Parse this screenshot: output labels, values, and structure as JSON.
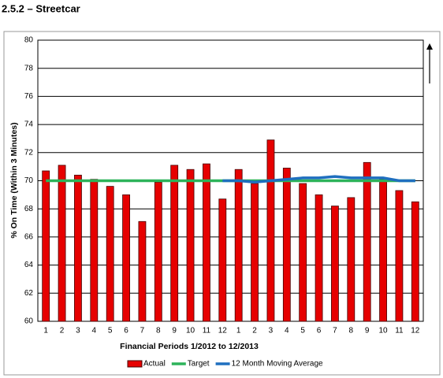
{
  "chart_data": {
    "type": "bar",
    "title": "2.5.2 – Streetcar",
    "x_label": "Financial Periods 1/2012 to 12/2013",
    "y_label": "% On Time (Within 3 Minutes)",
    "categories": [
      "1",
      "2",
      "3",
      "4",
      "5",
      "6",
      "7",
      "8",
      "9",
      "10",
      "11",
      "12",
      "1",
      "2",
      "3",
      "4",
      "5",
      "6",
      "7",
      "8",
      "9",
      "10",
      "11",
      "12"
    ],
    "series": [
      {
        "name": "Actual",
        "type": "bar",
        "color": "#e60000",
        "values": [
          70.7,
          71.1,
          70.4,
          70.1,
          69.6,
          69.0,
          67.1,
          69.9,
          71.1,
          70.8,
          71.2,
          68.7,
          70.8,
          69.8,
          72.9,
          70.9,
          69.8,
          69.0,
          68.2,
          68.8,
          71.3,
          70.1,
          69.3,
          68.5
        ]
      },
      {
        "name": "Target",
        "type": "line",
        "color": "#2db35a",
        "values": [
          70,
          70,
          70,
          70,
          70,
          70,
          70,
          70,
          70,
          70,
          70,
          70,
          70,
          70,
          70,
          70,
          70,
          70,
          70,
          70,
          70,
          70,
          70,
          70
        ]
      },
      {
        "name": "12 Month Moving Average",
        "type": "line",
        "color": "#1f6fbf",
        "values": [
          null,
          null,
          null,
          null,
          null,
          null,
          null,
          null,
          null,
          null,
          null,
          70.0,
          70.0,
          69.9,
          70.0,
          70.1,
          70.2,
          70.2,
          70.3,
          70.2,
          70.2,
          70.2,
          70.0,
          70.0
        ]
      }
    ],
    "ylim": [
      60,
      80
    ],
    "yticks": [
      60,
      62,
      64,
      66,
      68,
      70,
      72,
      74,
      76,
      78,
      80
    ],
    "grid": true,
    "legend": "bottom"
  }
}
